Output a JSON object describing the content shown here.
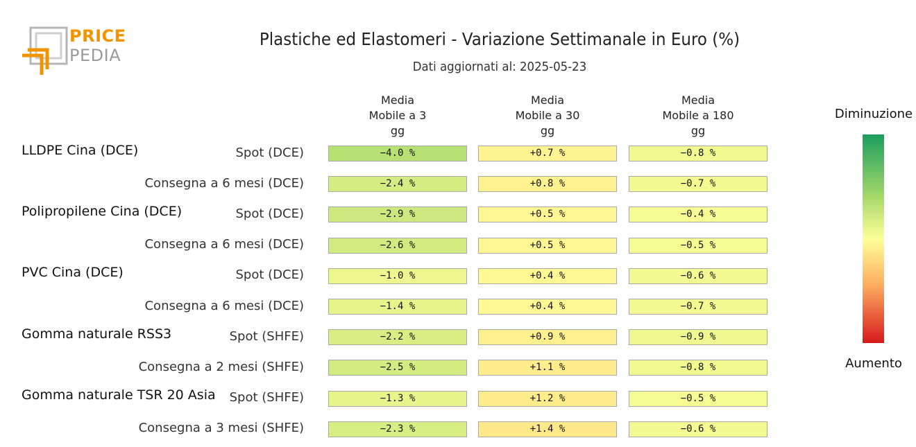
{
  "logo": {
    "line1": "PRICE",
    "line2": "PEDIA",
    "color_orange": "#f29400",
    "color_gray": "#9a9a9a"
  },
  "header": {
    "title": "Plastiche ed Elastomeri - Variazione Settimanale in Euro (%)",
    "subtitle": "Dati aggiornati al: 2025-05-23"
  },
  "legend": {
    "top": "Diminuzione",
    "bottom": "Aumento"
  },
  "chart_data": {
    "type": "table",
    "title": "Plastiche ed Elastomeri - Variazione Settimanale in Euro (%)",
    "subtitle": "Dati aggiornati al: 2025-05-23",
    "columns": [
      [
        "Media",
        "Mobile a 3",
        "gg"
      ],
      [
        "Media",
        "Mobile a 30",
        "gg"
      ],
      [
        "Media",
        "Mobile a 180",
        "gg"
      ]
    ],
    "groups": [
      {
        "name": "LLDPE Cina (DCE)",
        "rows": [
          {
            "label": "Spot (DCE)",
            "values": [
              -4.0,
              0.7,
              -0.8
            ]
          },
          {
            "label": "Consegna a 6 mesi (DCE)",
            "values": [
              -2.4,
              0.8,
              -0.7
            ]
          }
        ]
      },
      {
        "name": "Polipropilene Cina (DCE)",
        "rows": [
          {
            "label": "Spot (DCE)",
            "values": [
              -2.9,
              0.5,
              -0.4
            ]
          },
          {
            "label": "Consegna a 6 mesi (DCE)",
            "values": [
              -2.6,
              0.5,
              -0.5
            ]
          }
        ]
      },
      {
        "name": "PVC Cina (DCE)",
        "rows": [
          {
            "label": "Spot (DCE)",
            "values": [
              -1.0,
              0.4,
              -0.6
            ]
          },
          {
            "label": "Consegna a 6 mesi (DCE)",
            "values": [
              -1.4,
              0.4,
              -0.7
            ]
          }
        ]
      },
      {
        "name": "Gomma naturale RSS3",
        "rows": [
          {
            "label": "Spot (SHFE)",
            "values": [
              -2.2,
              0.9,
              -0.9
            ]
          },
          {
            "label": "Consegna a 2 mesi (SHFE)",
            "values": [
              -2.5,
              1.1,
              -0.8
            ]
          }
        ]
      },
      {
        "name": "Gomma naturale TSR 20 Asia",
        "rows": [
          {
            "label": "Spot (SHFE)",
            "values": [
              -1.3,
              1.2,
              -0.5
            ]
          },
          {
            "label": "Consegna a 3 mesi (SHFE)",
            "values": [
              -2.3,
              1.4,
              -0.6
            ]
          }
        ]
      }
    ],
    "value_suffix": " %",
    "colorscale": {
      "negative_end": "#1a9e5e",
      "mid_green": "#a6d96a",
      "neutral": "#ffff99",
      "positive_mid": "#fdae61",
      "positive_end": "#d7191c"
    }
  }
}
